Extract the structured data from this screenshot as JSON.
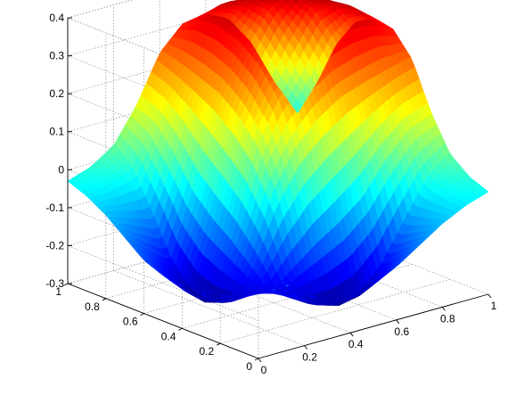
{
  "chart_data": {
    "type": "surface",
    "title": "",
    "xlabel": "",
    "ylabel": "",
    "zlabel": "",
    "x_ticks": [
      "0",
      "0.2",
      "0.4",
      "0.6",
      "0.8",
      "1"
    ],
    "y_ticks": [
      "0",
      "0.2",
      "0.4",
      "0.6",
      "0.8",
      "1"
    ],
    "z_ticks": [
      "-0.3",
      "-0.2",
      "-0.1",
      "0",
      "0.1",
      "0.2",
      "0.3",
      "0.4"
    ],
    "xlim": [
      0,
      1
    ],
    "ylim": [
      0,
      1
    ],
    "zlim": [
      -0.3,
      0.4
    ],
    "grid": true,
    "colormap": "jet",
    "clim": [
      -0.3,
      0.4
    ],
    "shading": "interp",
    "surface": {
      "x": [
        0,
        0.1,
        0.2,
        0.3,
        0.4,
        0.5,
        0.6,
        0.7,
        0.8,
        0.9,
        1
      ],
      "y": [
        0,
        0.1,
        0.2,
        0.3,
        0.4,
        0.5,
        0.6,
        0.7,
        0.8,
        0.9,
        1
      ],
      "z": [
        [
          -0.03,
          -0.07,
          -0.12,
          -0.16,
          -0.18,
          -0.18,
          -0.16,
          -0.12,
          -0.08,
          -0.05,
          -0.03
        ],
        [
          -0.07,
          -0.11,
          -0.15,
          -0.2,
          -0.23,
          -0.24,
          -0.22,
          -0.17,
          -0.1,
          -0.04,
          -0.01
        ],
        [
          -0.12,
          -0.15,
          -0.19,
          -0.23,
          -0.27,
          -0.29,
          -0.28,
          -0.22,
          -0.12,
          -0.02,
          0.03
        ],
        [
          -0.16,
          -0.2,
          -0.23,
          -0.23,
          -0.18,
          -0.13,
          -0.09,
          -0.04,
          0.04,
          0.1,
          0.12
        ],
        [
          -0.18,
          -0.23,
          -0.27,
          -0.18,
          -0.02,
          0.08,
          0.14,
          0.18,
          0.2,
          0.22,
          0.24
        ],
        [
          -0.18,
          -0.24,
          -0.29,
          -0.13,
          0.08,
          0.2,
          0.27,
          0.31,
          0.33,
          0.33,
          0.3
        ],
        [
          -0.16,
          -0.22,
          -0.28,
          -0.09,
          0.14,
          0.27,
          0.35,
          0.38,
          0.38,
          0.36,
          0.31
        ],
        [
          -0.12,
          -0.17,
          -0.22,
          -0.04,
          0.18,
          0.31,
          0.38,
          0.4,
          0.39,
          0.35,
          0.28
        ],
        [
          -0.08,
          -0.1,
          -0.12,
          0.04,
          0.2,
          0.33,
          0.38,
          0.39,
          0.37,
          0.31,
          0.2
        ],
        [
          -0.05,
          -0.04,
          -0.02,
          0.1,
          0.22,
          0.33,
          0.36,
          0.35,
          0.31,
          0.2,
          0.08
        ],
        [
          -0.03,
          -0.01,
          0.03,
          0.12,
          0.24,
          0.3,
          0.31,
          0.28,
          0.2,
          0.08,
          -0.02
        ]
      ]
    }
  }
}
